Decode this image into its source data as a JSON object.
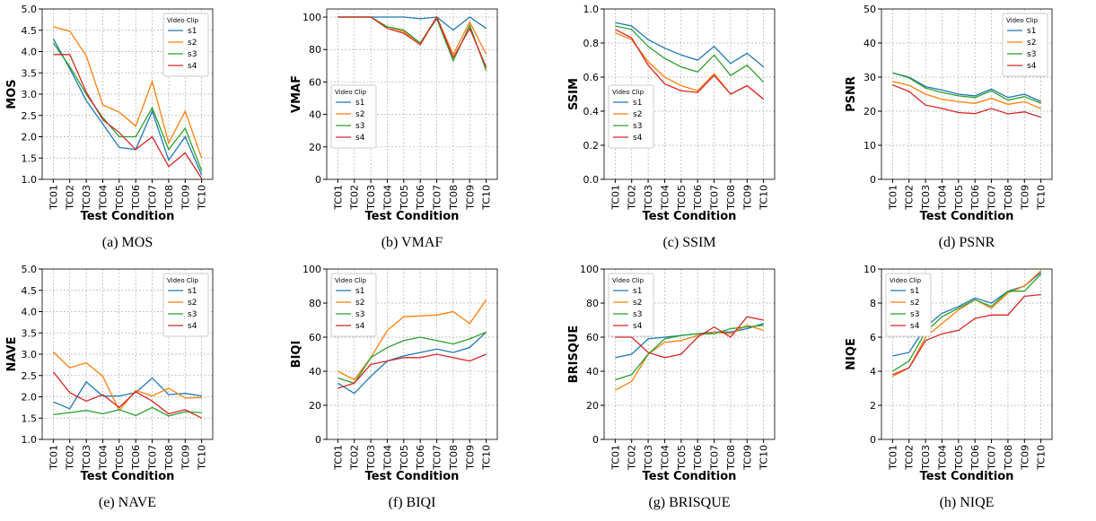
{
  "chart_data": [
    {
      "type": "line",
      "caption": "(a) MOS",
      "ylabel": "MOS",
      "xlabel": "Test Condition",
      "legend_title": "Video Clip",
      "legend_loc": "upper right",
      "grid": true,
      "categories": [
        "TC01",
        "TC02",
        "TC03",
        "TC04",
        "TC05",
        "TC06",
        "TC07",
        "TC08",
        "TC09",
        "TC10"
      ],
      "ylim": [
        1,
        5
      ],
      "yticks": [
        {
          "value": 1,
          "label": "1.0"
        },
        1.5,
        {
          "value": 2,
          "label": "2.0"
        },
        2.5,
        {
          "value": 3,
          "label": "3.0"
        },
        3.5,
        {
          "value": 4,
          "label": "4.0"
        },
        4.5,
        {
          "value": 5,
          "label": "5.0"
        }
      ],
      "series": [
        {
          "name": "s1",
          "color": "#1f77b4",
          "values": [
            4.3,
            3.6,
            2.85,
            2.3,
            1.75,
            1.7,
            2.6,
            1.45,
            2.0,
            1.1
          ]
        },
        {
          "name": "s2",
          "color": "#ff7f0e",
          "values": [
            4.58,
            4.48,
            3.9,
            2.75,
            2.58,
            2.25,
            3.3,
            1.85,
            2.6,
            1.5
          ]
        },
        {
          "name": "s3",
          "color": "#2ca02c",
          "values": [
            4.2,
            3.65,
            3.0,
            2.45,
            2.0,
            2.0,
            2.68,
            1.7,
            2.2,
            1.2
          ]
        },
        {
          "name": "s4",
          "color": "#d62728",
          "values": [
            3.93,
            3.93,
            3.05,
            2.4,
            2.1,
            1.7,
            2.0,
            1.3,
            1.62,
            1.02
          ]
        }
      ]
    },
    {
      "type": "line",
      "caption": "(b) VMAF",
      "ylabel": "VMAF",
      "xlabel": "Test Condition",
      "legend_title": "Video Clip",
      "legend_loc": "lower left",
      "grid": true,
      "categories": [
        "TC01",
        "TC02",
        "TC03",
        "TC04",
        "TC05",
        "TC06",
        "TC07",
        "TC08",
        "TC09",
        "TC10"
      ],
      "ylim": [
        0,
        105
      ],
      "yticks": [
        0,
        20,
        40,
        60,
        80,
        100
      ],
      "series": [
        {
          "name": "s1",
          "color": "#1f77b4",
          "values": [
            100,
            100,
            100,
            100,
            100,
            99,
            100,
            92,
            100,
            93
          ]
        },
        {
          "name": "s2",
          "color": "#ff7f0e",
          "values": [
            100,
            100,
            100,
            94,
            91,
            84,
            100,
            77,
            97,
            77
          ]
        },
        {
          "name": "s3",
          "color": "#2ca02c",
          "values": [
            100,
            100,
            100,
            94,
            92,
            84,
            99,
            73,
            95,
            67
          ]
        },
        {
          "name": "s4",
          "color": "#d62728",
          "values": [
            100,
            100,
            100,
            93,
            90,
            83,
            100,
            75,
            93,
            69
          ]
        }
      ]
    },
    {
      "type": "line",
      "caption": "(c) SSIM",
      "ylabel": "SSIM",
      "xlabel": "Test Condition",
      "legend_title": "Video Clip",
      "legend_loc": "lower left",
      "grid": true,
      "categories": [
        "TC01",
        "TC02",
        "TC03",
        "TC04",
        "TC05",
        "TC06",
        "TC07",
        "TC08",
        "TC09",
        "TC10"
      ],
      "ylim": [
        0,
        1
      ],
      "yticks": [
        {
          "value": 0,
          "label": "0.0"
        },
        0.2,
        0.4,
        0.6,
        0.8,
        {
          "value": 1,
          "label": "1.0"
        }
      ],
      "series": [
        {
          "name": "s1",
          "color": "#1f77b4",
          "values": [
            0.92,
            0.9,
            0.82,
            0.77,
            0.73,
            0.7,
            0.78,
            0.68,
            0.74,
            0.66
          ]
        },
        {
          "name": "s2",
          "color": "#ff7f0e",
          "values": [
            0.86,
            0.82,
            0.69,
            0.6,
            0.55,
            0.52,
            0.62,
            0.5,
            0.55,
            0.47
          ]
        },
        {
          "name": "s3",
          "color": "#2ca02c",
          "values": [
            0.9,
            0.88,
            0.78,
            0.71,
            0.66,
            0.63,
            0.73,
            0.61,
            0.67,
            0.57
          ]
        },
        {
          "name": "s4",
          "color": "#d62728",
          "values": [
            0.88,
            0.83,
            0.67,
            0.56,
            0.52,
            0.51,
            0.61,
            0.5,
            0.55,
            0.47
          ]
        }
      ]
    },
    {
      "type": "line",
      "caption": "(d) PSNR",
      "ylabel": "PSNR",
      "xlabel": "Test Condition",
      "legend_title": "Video Clip",
      "legend_loc": "upper right",
      "grid": true,
      "categories": [
        "TC01",
        "TC02",
        "TC03",
        "TC04",
        "TC05",
        "TC06",
        "TC07",
        "TC08",
        "TC09",
        "TC10"
      ],
      "ylim": [
        0,
        50
      ],
      "yticks": [
        0,
        10,
        20,
        30,
        40,
        50
      ],
      "series": [
        {
          "name": "s1",
          "color": "#1f77b4",
          "values": [
            31.2,
            30.0,
            27.2,
            26.2,
            25.0,
            24.5,
            26.5,
            24.0,
            25.0,
            22.8
          ]
        },
        {
          "name": "s2",
          "color": "#ff7f0e",
          "values": [
            28.7,
            27.6,
            25.0,
            23.5,
            22.8,
            22.3,
            23.8,
            22.0,
            22.8,
            20.8
          ]
        },
        {
          "name": "s3",
          "color": "#2ca02c",
          "values": [
            31.3,
            29.8,
            26.8,
            25.5,
            24.5,
            24.0,
            26.0,
            23.2,
            24.3,
            22.3
          ]
        },
        {
          "name": "s4",
          "color": "#d62728",
          "values": [
            27.7,
            25.8,
            21.8,
            20.8,
            19.6,
            19.3,
            20.8,
            19.2,
            19.8,
            18.2
          ]
        }
      ]
    },
    {
      "type": "line",
      "caption": "(e) NAVE",
      "ylabel": "NAVE",
      "xlabel": "Test Condition",
      "legend_title": "Video Clip",
      "legend_loc": "upper right",
      "grid": true,
      "categories": [
        "TC01",
        "TC02",
        "TC03",
        "TC04",
        "TC05",
        "TC06",
        "TC07",
        "TC08",
        "TC09",
        "TC10"
      ],
      "ylim": [
        1,
        5
      ],
      "yticks": [
        {
          "value": 1,
          "label": "1.0"
        },
        1.5,
        {
          "value": 2,
          "label": "2.0"
        },
        2.5,
        {
          "value": 3,
          "label": "3.0"
        },
        3.5,
        {
          "value": 4,
          "label": "4.0"
        },
        4.5,
        {
          "value": 5,
          "label": "5.0"
        }
      ],
      "series": [
        {
          "name": "s1",
          "color": "#1f77b4",
          "values": [
            1.88,
            1.72,
            2.35,
            2.02,
            2.02,
            2.1,
            2.44,
            2.05,
            2.08,
            2.02
          ]
        },
        {
          "name": "s2",
          "color": "#ff7f0e",
          "values": [
            3.05,
            2.68,
            2.8,
            2.48,
            1.68,
            2.15,
            2.02,
            2.2,
            1.97,
            1.98
          ]
        },
        {
          "name": "s3",
          "color": "#2ca02c",
          "values": [
            1.58,
            1.63,
            1.68,
            1.6,
            1.7,
            1.56,
            1.75,
            1.55,
            1.65,
            1.63
          ]
        },
        {
          "name": "s4",
          "color": "#d62728",
          "values": [
            2.58,
            2.1,
            1.9,
            2.05,
            1.75,
            2.12,
            1.9,
            1.6,
            1.7,
            1.5
          ]
        }
      ]
    },
    {
      "type": "line",
      "caption": "(f) BIQI",
      "ylabel": "BIQI",
      "xlabel": "Test Condition",
      "legend_title": "Video Clip",
      "legend_loc": "upper left",
      "grid": true,
      "categories": [
        "TC01",
        "TC02",
        "TC03",
        "TC04",
        "TC05",
        "TC06",
        "TC07",
        "TC08",
        "TC09",
        "TC10"
      ],
      "ylim": [
        0,
        100
      ],
      "yticks": [
        0,
        20,
        40,
        60,
        80,
        100
      ],
      "series": [
        {
          "name": "s1",
          "color": "#1f77b4",
          "values": [
            33,
            27,
            37,
            46,
            49,
            51,
            53,
            51,
            54,
            63
          ]
        },
        {
          "name": "s2",
          "color": "#ff7f0e",
          "values": [
            40,
            35,
            48,
            64,
            72,
            72.5,
            73,
            75,
            68,
            82
          ]
        },
        {
          "name": "s3",
          "color": "#2ca02c",
          "values": [
            36,
            33,
            48,
            54,
            58,
            60,
            58,
            56,
            59,
            63
          ]
        },
        {
          "name": "s4",
          "color": "#d62728",
          "values": [
            30,
            33,
            44,
            46,
            48,
            48,
            50,
            48,
            46,
            50
          ]
        }
      ]
    },
    {
      "type": "line",
      "caption": "(g) BRISQUE",
      "ylabel": "BRISQUE",
      "xlabel": "Test Condition",
      "legend_title": "Video Clip",
      "legend_loc": "upper left",
      "grid": true,
      "categories": [
        "TC01",
        "TC02",
        "TC03",
        "TC04",
        "TC05",
        "TC06",
        "TC07",
        "TC08",
        "TC09",
        "TC10"
      ],
      "ylim": [
        0,
        100
      ],
      "yticks": [
        0,
        20,
        40,
        60,
        80,
        100
      ],
      "series": [
        {
          "name": "s1",
          "color": "#1f77b4",
          "values": [
            48,
            50,
            59,
            60,
            61,
            62,
            63,
            63,
            65,
            68
          ]
        },
        {
          "name": "s2",
          "color": "#ff7f0e",
          "values": [
            29,
            34,
            50,
            57,
            58,
            61,
            63,
            62,
            67,
            64
          ]
        },
        {
          "name": "s3",
          "color": "#2ca02c",
          "values": [
            35,
            38,
            50,
            59,
            61,
            62,
            62,
            65,
            66,
            67
          ]
        },
        {
          "name": "s4",
          "color": "#d62728",
          "values": [
            60,
            60,
            51,
            48,
            50,
            60,
            66,
            60,
            72,
            70
          ]
        }
      ]
    },
    {
      "type": "line",
      "caption": "(h) NIQE",
      "ylabel": "NIQE",
      "xlabel": "Test Condition",
      "legend_title": "Video Clip",
      "legend_loc": "upper left",
      "grid": true,
      "categories": [
        "TC01",
        "TC02",
        "TC03",
        "TC04",
        "TC05",
        "TC06",
        "TC07",
        "TC08",
        "TC09",
        "TC10"
      ],
      "ylim": [
        0,
        10
      ],
      "yticks": [
        0,
        2,
        4,
        6,
        8,
        10
      ],
      "series": [
        {
          "name": "s1",
          "color": "#1f77b4",
          "values": [
            4.9,
            5.1,
            6.6,
            7.4,
            7.8,
            8.3,
            8.0,
            8.7,
            9.0,
            9.8
          ]
        },
        {
          "name": "s2",
          "color": "#ff7f0e",
          "values": [
            3.7,
            4.2,
            6.0,
            6.8,
            7.6,
            8.2,
            7.7,
            8.6,
            9.0,
            9.9
          ]
        },
        {
          "name": "s3",
          "color": "#2ca02c",
          "values": [
            4.0,
            4.6,
            6.3,
            7.2,
            7.7,
            8.2,
            7.8,
            8.7,
            8.7,
            9.7
          ]
        },
        {
          "name": "s4",
          "color": "#d62728",
          "values": [
            3.8,
            4.2,
            5.8,
            6.2,
            6.4,
            7.1,
            7.3,
            7.3,
            8.4,
            8.5
          ]
        }
      ]
    }
  ]
}
